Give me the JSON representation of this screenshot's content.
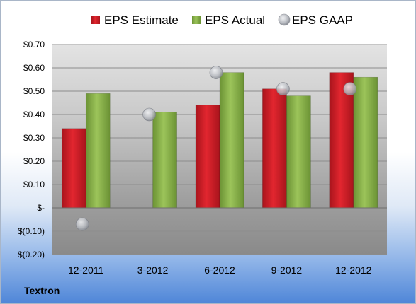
{
  "company": "Textron",
  "chart_data": {
    "type": "bar",
    "categories": [
      "12-2011",
      "3-2012",
      "6-2012",
      "9-2012",
      "12-2012"
    ],
    "series": [
      {
        "name": "EPS Estimate",
        "kind": "bar",
        "color": "#cc1f27",
        "values": [
          0.34,
          null,
          0.44,
          0.51,
          0.58
        ]
      },
      {
        "name": "EPS Actual",
        "kind": "bar",
        "color": "#86b04a",
        "values": [
          0.49,
          0.41,
          0.58,
          0.48,
          0.56
        ]
      },
      {
        "name": "EPS GAAP",
        "kind": "marker",
        "color": "#b9bcc2",
        "values": [
          -0.07,
          0.4,
          0.58,
          0.51,
          0.51
        ]
      }
    ],
    "y_ticks": [
      {
        "value": 0.7,
        "label": "$0.70"
      },
      {
        "value": 0.6,
        "label": "$0.60"
      },
      {
        "value": 0.5,
        "label": "$0.50"
      },
      {
        "value": 0.4,
        "label": "$0.40"
      },
      {
        "value": 0.3,
        "label": "$0.30"
      },
      {
        "value": 0.2,
        "label": "$0.20"
      },
      {
        "value": 0.1,
        "label": "$0.10"
      },
      {
        "value": 0.0,
        "label": "$-"
      },
      {
        "value": -0.1,
        "label": "$(0.10)"
      },
      {
        "value": -0.2,
        "label": "$(0.20)"
      }
    ],
    "ylim": [
      -0.2,
      0.7
    ],
    "grid": true,
    "legend_position": "top"
  }
}
